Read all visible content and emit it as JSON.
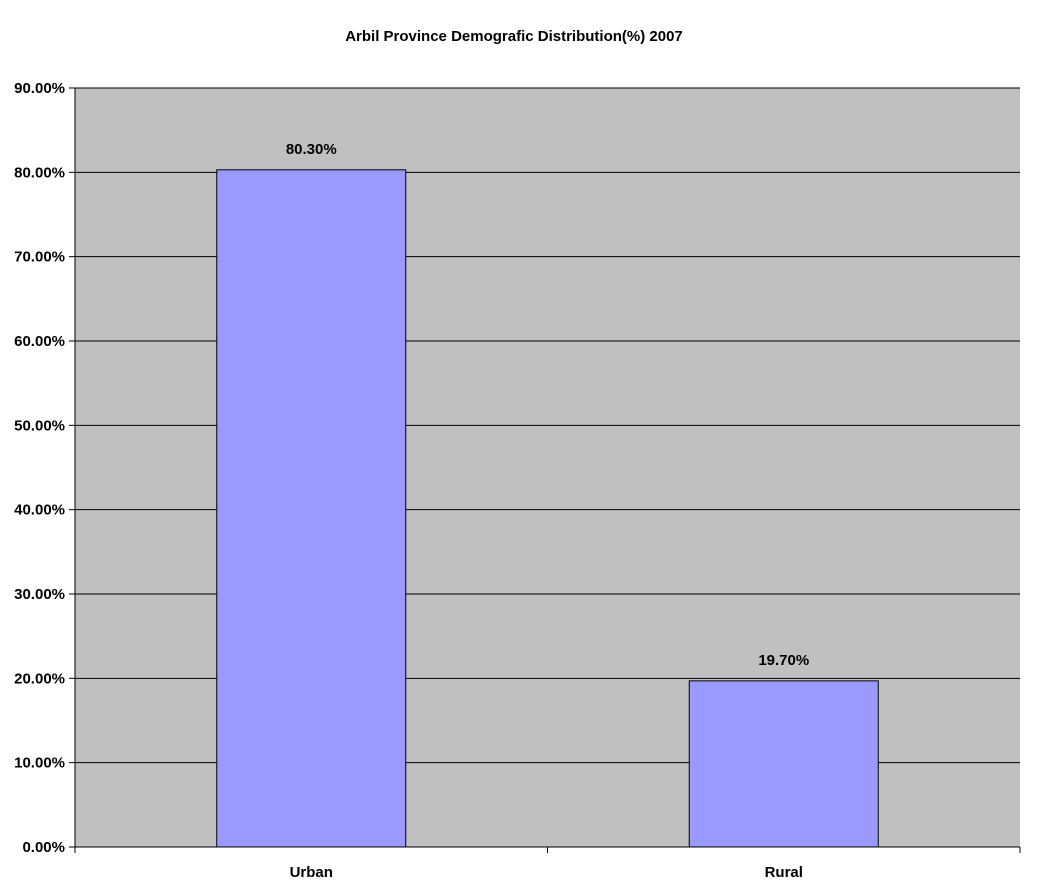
{
  "chart_data": {
    "type": "bar",
    "title": "Arbil Province Demografic Distribution(%) 2007",
    "xlabel": "",
    "ylabel": "",
    "categories": [
      "Urban",
      "Rural"
    ],
    "values": [
      80.3,
      19.7
    ],
    "data_labels": [
      "80.30%",
      "19.70%"
    ],
    "ylim": [
      0,
      90
    ],
    "yticks": [
      0,
      10,
      20,
      30,
      40,
      50,
      60,
      70,
      80,
      90
    ],
    "ytick_labels": [
      "0.00%",
      "10.00%",
      "20.00%",
      "30.00%",
      "40.00%",
      "50.00%",
      "60.00%",
      "70.00%",
      "80.00%",
      "90.00%"
    ],
    "grid": true,
    "legend": "none",
    "colors": {
      "plot_background": "#c0c0c0",
      "bar_fill": "#9999ff",
      "bar_stroke": "#000000",
      "gridline": "#000000"
    }
  }
}
